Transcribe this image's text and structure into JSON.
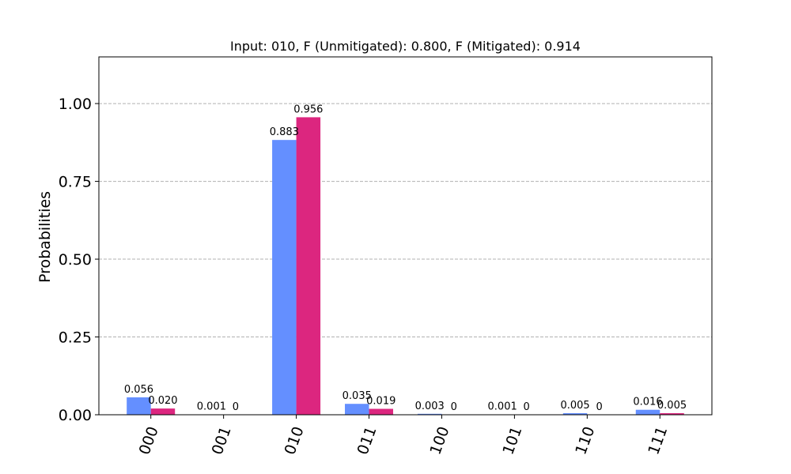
{
  "chart_data": {
    "type": "bar",
    "title": "Input: 010, F (Unmitigated): 0.800, F (Mitigated): 0.914",
    "xlabel": "",
    "ylabel": "Probabilities",
    "categories": [
      "000",
      "001",
      "010",
      "011",
      "100",
      "101",
      "110",
      "111"
    ],
    "ylim": [
      0,
      1.15
    ],
    "yticks": [
      0.0,
      0.25,
      0.5,
      0.75,
      1.0
    ],
    "ytick_labels": [
      "0.00",
      "0.25",
      "0.50",
      "0.75",
      "1.00"
    ],
    "grid": "y-dashed",
    "legend": "none",
    "series": [
      {
        "color": "#648fff",
        "values": [
          0.056,
          0.001,
          0.883,
          0.035,
          0.003,
          0.001,
          0.005,
          0.016
        ],
        "labels": [
          "0.056",
          "0.001",
          "0.883",
          "0.035",
          "0.003",
          "0.001",
          "0.005",
          "0.016"
        ]
      },
      {
        "color": "#dc267f",
        "values": [
          0.02,
          0,
          0.956,
          0.019,
          0,
          0,
          0,
          0.005
        ],
        "labels": [
          "0.020",
          "0",
          "0.956",
          "0.019",
          "0",
          "0",
          "0",
          "0.005"
        ]
      }
    ]
  }
}
